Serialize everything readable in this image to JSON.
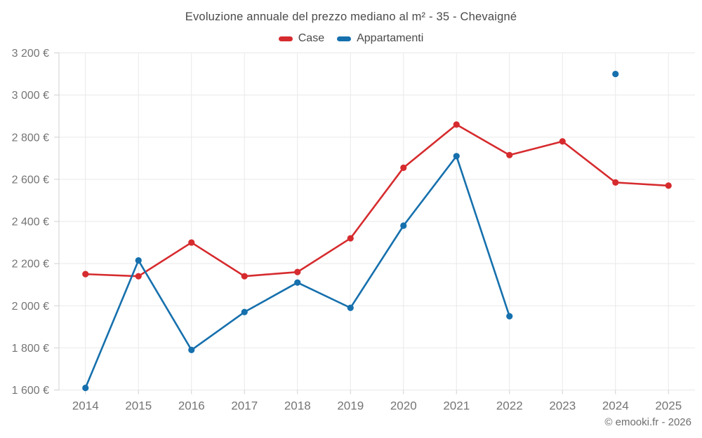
{
  "header": {
    "title": "Evoluzione annuale del prezzo mediano al m² - 35 - Chevaigné"
  },
  "footer": {
    "copyright": "© emooki.fr - 2026"
  },
  "chart_data": {
    "type": "line",
    "title": "Evoluzione annuale del prezzo mediano al m² - 35 - Chevaigné",
    "categories": [
      "2014",
      "2015",
      "2016",
      "2017",
      "2018",
      "2019",
      "2020",
      "2021",
      "2022",
      "2023",
      "2024",
      "2025"
    ],
    "series": [
      {
        "name": "Case",
        "color": "#d62b2e",
        "values": [
          2150,
          2140,
          2300,
          2140,
          2160,
          2320,
          2655,
          2860,
          2715,
          2780,
          2585,
          2570
        ]
      },
      {
        "name": "Appartamenti",
        "color": "#1670ad",
        "values": [
          1610,
          2215,
          1790,
          1970,
          2110,
          1990,
          2380,
          2710,
          1950,
          null,
          3100,
          null
        ]
      }
    ],
    "ylim": [
      1600,
      3200
    ],
    "yticks": [
      1600,
      1800,
      2000,
      2200,
      2400,
      2600,
      2800,
      3000,
      3200
    ],
    "ytick_labels": [
      "1 600 €",
      "1 800 €",
      "2 000 €",
      "2 200 €",
      "2 400 €",
      "2 600 €",
      "2 800 €",
      "3 000 €",
      "3 200 €"
    ],
    "xlabel": "",
    "ylabel": "",
    "currency": "€",
    "grid": true,
    "legend_position": "top"
  }
}
